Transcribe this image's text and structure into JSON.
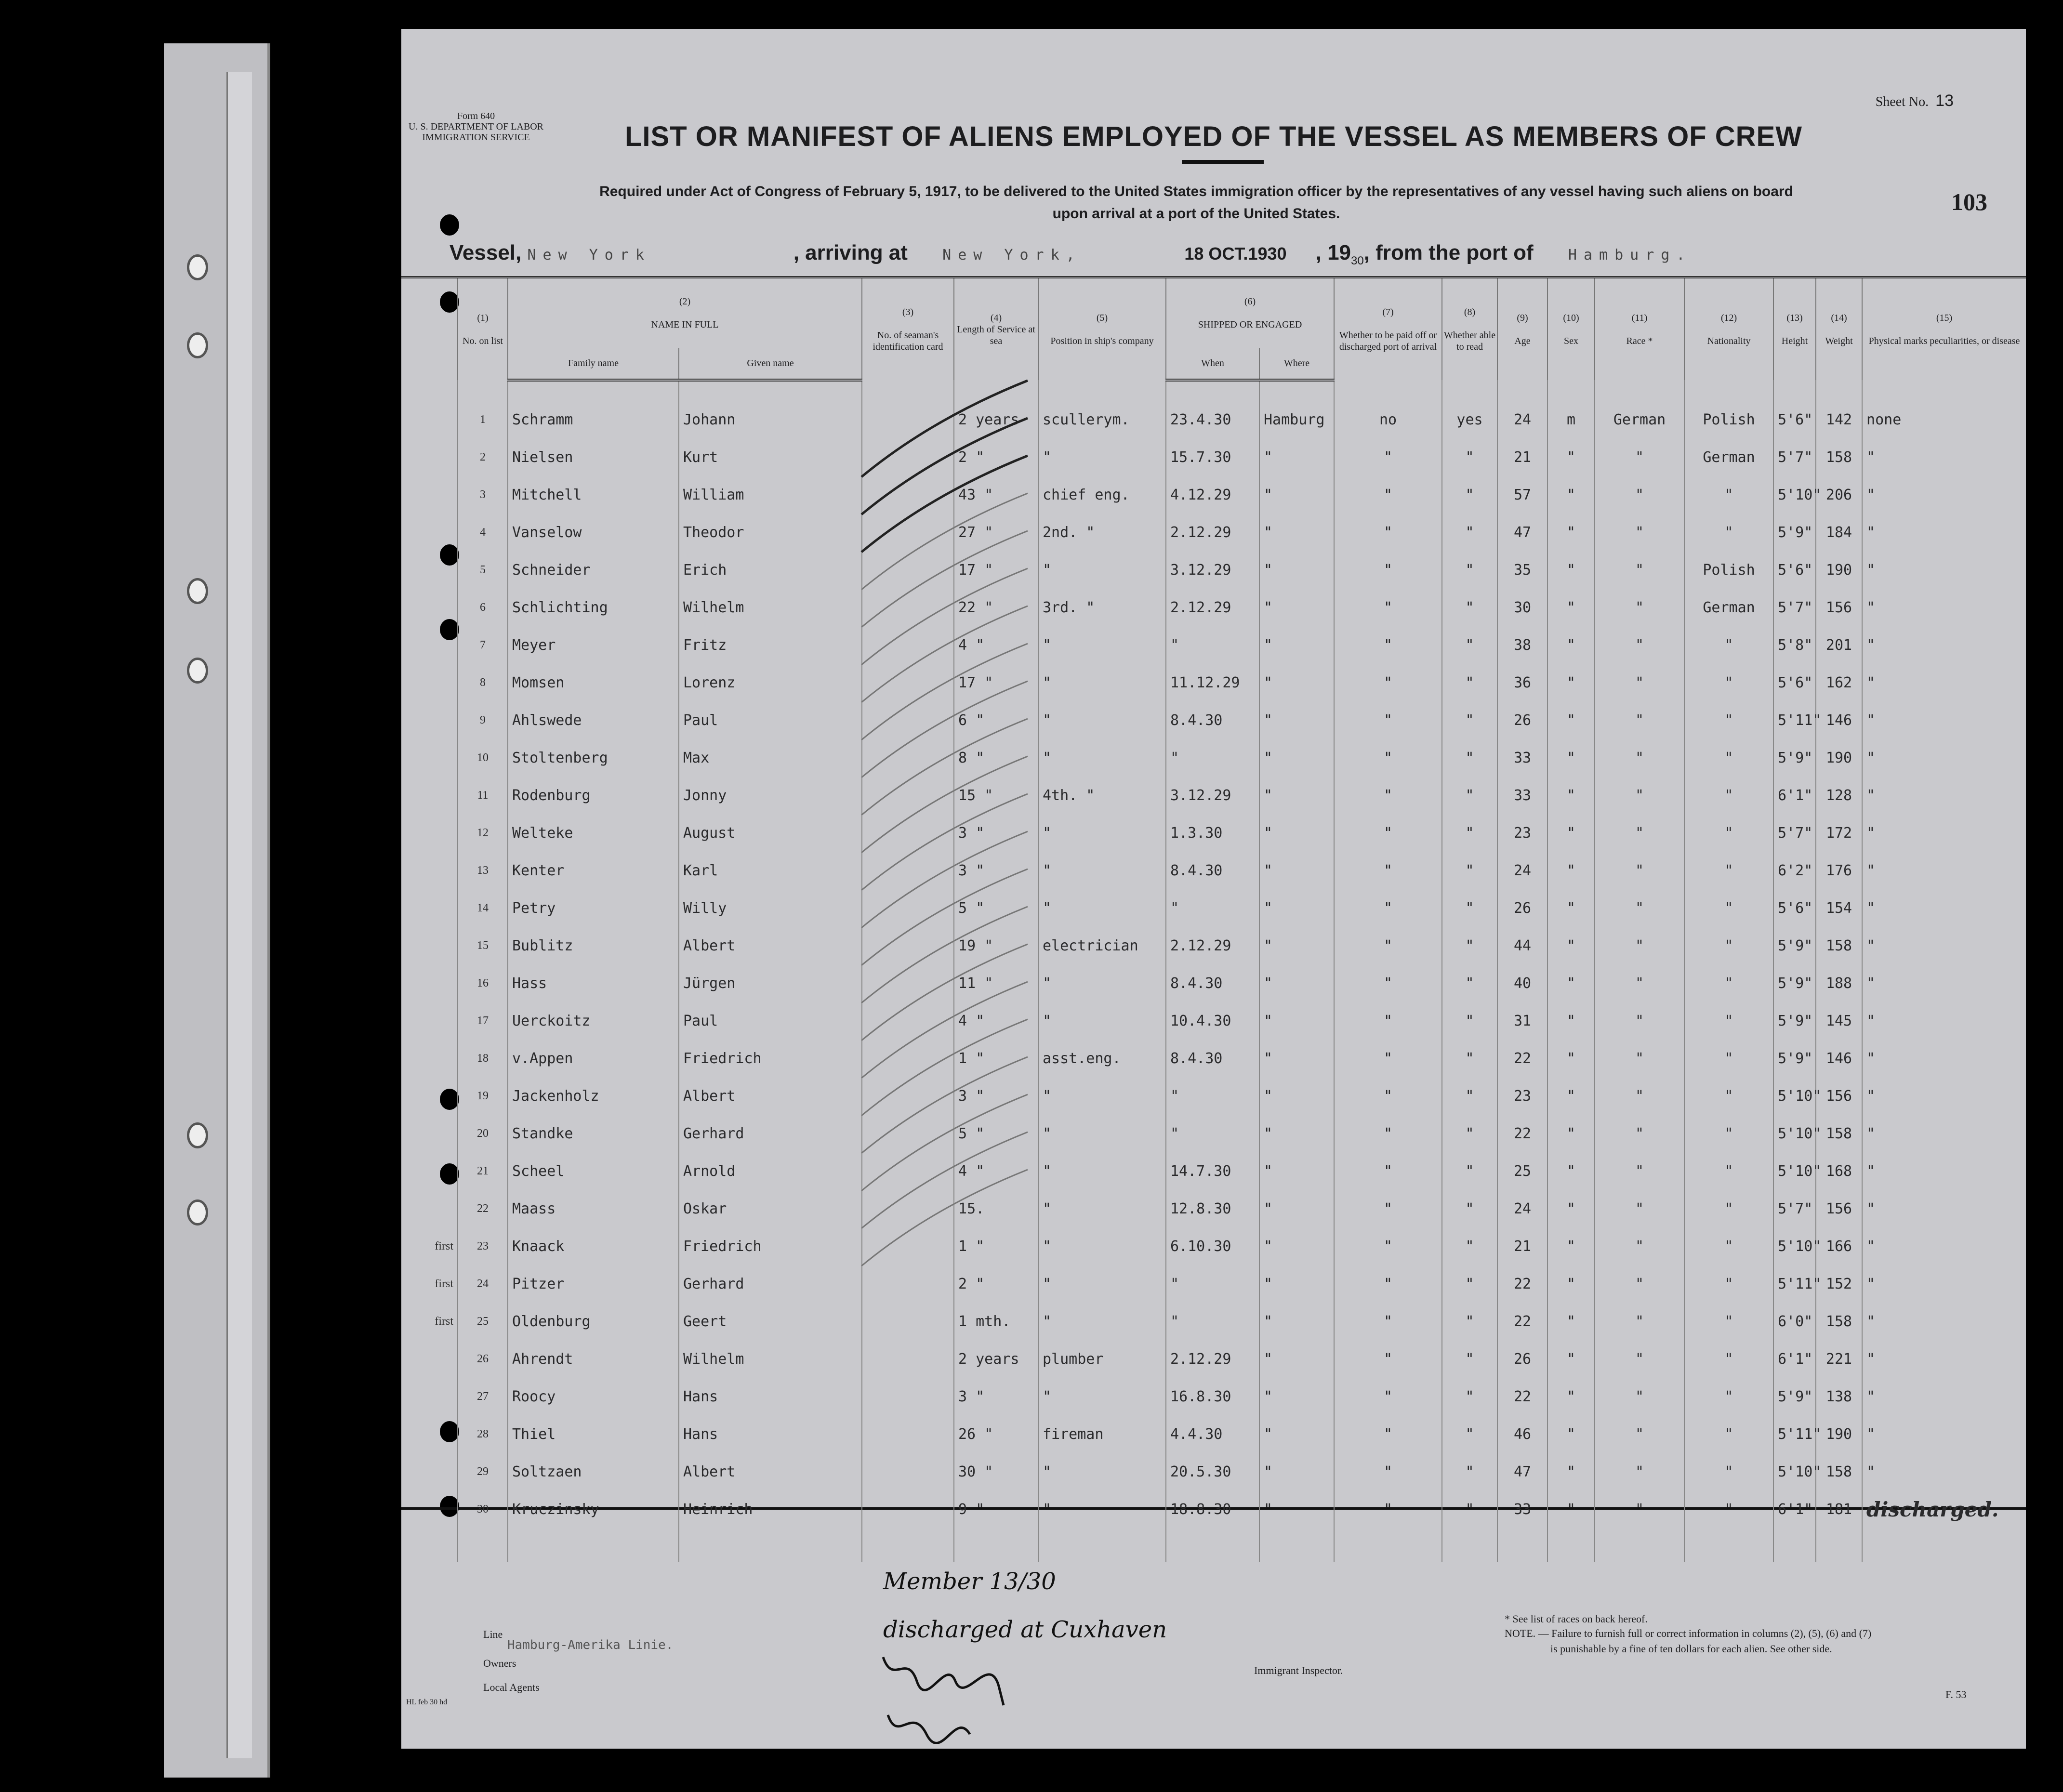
{
  "header": {
    "form_label": "Form 640",
    "department": "U. S. DEPARTMENT OF LABOR",
    "service": "IMMIGRATION SERVICE",
    "sheet_label": "Sheet No.",
    "sheet_no": "13",
    "title": "LIST OR MANIFEST OF ALIENS EMPLOYED OF THE VESSEL AS MEMBERS OF CREW",
    "requirement_line1": "Required under Act of Congress of February 5, 1917, to be delivered to the United States immigration officer by the representatives of any vessel having such aliens on board",
    "requirement_line2": "upon arrival at a port of the United States.",
    "page_number": "103",
    "vessel_label": "Vessel,",
    "vessel_name": "New York",
    "arriving_label": ", arriving at",
    "arrival_port": "New York,",
    "date_stamp": "18 OCT.1930",
    "year_label": ", 19",
    "year": "30",
    "from_label": ", from the port of",
    "departure_port": "Hamburg."
  },
  "columns": {
    "nums": [
      "(1)",
      "(2)",
      "(3)",
      "(4)",
      "(5)",
      "(6)",
      "(7)",
      "(8)",
      "(9)",
      "(10)",
      "(11)",
      "(12)",
      "(13)",
      "(14)",
      "(15)"
    ],
    "no_on_list": "No. on list",
    "name_in_full": "NAME IN FULL",
    "family_name": "Family name",
    "given_name": "Given name",
    "id_card": "No. of seaman's identification card",
    "length_service": "Length of Service at sea",
    "position": "Position in ship's company",
    "shipped": "SHIPPED OR ENGAGED",
    "when": "When",
    "where": "Where",
    "paid_off": "Whether to be paid off or discharged port of arrival",
    "able_read": "Whether able to read",
    "age": "Age",
    "sex": "Sex",
    "race": "Race *",
    "nationality": "Nationality",
    "height": "Height",
    "weight": "Weight",
    "marks": "Physical marks peculiarities, or disease"
  },
  "rows": [
    {
      "margin": "",
      "no": "1",
      "family": "Schramm",
      "given": "Johann",
      "service": "2 years",
      "position": "scullerym.",
      "when": "23.4.30",
      "where": "Hamburg",
      "paid": "no",
      "read": "yes",
      "age": "24",
      "sex": "m",
      "race": "German",
      "nat": "Polish",
      "height": "5'6\"",
      "weight": "142",
      "marks": "none"
    },
    {
      "margin": "",
      "no": "2",
      "family": "Nielsen",
      "given": "Kurt",
      "service": "2  \"",
      "position": "\"",
      "when": "15.7.30",
      "where": "\"",
      "paid": "\"",
      "read": "\"",
      "age": "21",
      "sex": "\"",
      "race": "\"",
      "nat": "German",
      "height": "5'7\"",
      "weight": "158",
      "marks": "\""
    },
    {
      "margin": "",
      "no": "3",
      "family": "Mitchell",
      "given": "William",
      "service": "43 \"",
      "position": "chief eng.",
      "when": "4.12.29",
      "where": "\"",
      "paid": "\"",
      "read": "\"",
      "age": "57",
      "sex": "\"",
      "race": "\"",
      "nat": "\"",
      "height": "5'10\"",
      "weight": "206",
      "marks": "\""
    },
    {
      "margin": "",
      "no": "4",
      "family": "Vanselow",
      "given": "Theodor",
      "service": "27 \"",
      "position": "2nd.  \"",
      "when": "2.12.29",
      "where": "\"",
      "paid": "\"",
      "read": "\"",
      "age": "47",
      "sex": "\"",
      "race": "\"",
      "nat": "\"",
      "height": "5'9\"",
      "weight": "184",
      "marks": "\""
    },
    {
      "margin": "",
      "no": "5",
      "family": "Schneider",
      "given": "Erich",
      "service": "17 \"",
      "position": "\"",
      "when": "3.12.29",
      "where": "\"",
      "paid": "\"",
      "read": "\"",
      "age": "35",
      "sex": "\"",
      "race": "\"",
      "nat": "Polish",
      "height": "5'6\"",
      "weight": "190",
      "marks": "\""
    },
    {
      "margin": "",
      "no": "6",
      "family": "Schlichting",
      "given": "Wilhelm",
      "service": "22 \"",
      "position": "3rd.  \"",
      "when": "2.12.29",
      "where": "\"",
      "paid": "\"",
      "read": "\"",
      "age": "30",
      "sex": "\"",
      "race": "\"",
      "nat": "German",
      "height": "5'7\"",
      "weight": "156",
      "marks": "\""
    },
    {
      "margin": "",
      "no": "7",
      "family": "Meyer",
      "given": "Fritz",
      "service": "4  \"",
      "position": "\"",
      "when": "\"",
      "where": "\"",
      "paid": "\"",
      "read": "\"",
      "age": "38",
      "sex": "\"",
      "race": "\"",
      "nat": "\"",
      "height": "5'8\"",
      "weight": "201",
      "marks": "\""
    },
    {
      "margin": "",
      "no": "8",
      "family": "Momsen",
      "given": "Lorenz",
      "service": "17 \"",
      "position": "\"",
      "when": "11.12.29",
      "where": "\"",
      "paid": "\"",
      "read": "\"",
      "age": "36",
      "sex": "\"",
      "race": "\"",
      "nat": "\"",
      "height": "5'6\"",
      "weight": "162",
      "marks": "\""
    },
    {
      "margin": "",
      "no": "9",
      "family": "Ahlswede",
      "given": "Paul",
      "service": "6  \"",
      "position": "\"",
      "when": "8.4.30",
      "where": "\"",
      "paid": "\"",
      "read": "\"",
      "age": "26",
      "sex": "\"",
      "race": "\"",
      "nat": "\"",
      "height": "5'11\"",
      "weight": "146",
      "marks": "\""
    },
    {
      "margin": "",
      "no": "10",
      "family": "Stoltenberg",
      "given": "Max",
      "service": "8  \"",
      "position": "\"",
      "when": "\"",
      "where": "\"",
      "paid": "\"",
      "read": "\"",
      "age": "33",
      "sex": "\"",
      "race": "\"",
      "nat": "\"",
      "height": "5'9\"",
      "weight": "190",
      "marks": "\""
    },
    {
      "margin": "",
      "no": "11",
      "family": "Rodenburg",
      "given": "Jonny",
      "service": "15 \"",
      "position": "4th.  \"",
      "when": "3.12.29",
      "where": "\"",
      "paid": "\"",
      "read": "\"",
      "age": "33",
      "sex": "\"",
      "race": "\"",
      "nat": "\"",
      "height": "6'1\"",
      "weight": "128",
      "marks": "\""
    },
    {
      "margin": "",
      "no": "12",
      "family": "Welteke",
      "given": "August",
      "service": "3  \"",
      "position": "\"",
      "when": "1.3.30",
      "where": "\"",
      "paid": "\"",
      "read": "\"",
      "age": "23",
      "sex": "\"",
      "race": "\"",
      "nat": "\"",
      "height": "5'7\"",
      "weight": "172",
      "marks": "\""
    },
    {
      "margin": "",
      "no": "13",
      "family": "Kenter",
      "given": "Karl",
      "service": "3  \"",
      "position": "\"",
      "when": "8.4.30",
      "where": "\"",
      "paid": "\"",
      "read": "\"",
      "age": "24",
      "sex": "\"",
      "race": "\"",
      "nat": "\"",
      "height": "6'2\"",
      "weight": "176",
      "marks": "\""
    },
    {
      "margin": "",
      "no": "14",
      "family": "Petry",
      "given": "Willy",
      "service": "5  \"",
      "position": "\"",
      "when": "\"",
      "where": "\"",
      "paid": "\"",
      "read": "\"",
      "age": "26",
      "sex": "\"",
      "race": "\"",
      "nat": "\"",
      "height": "5'6\"",
      "weight": "154",
      "marks": "\""
    },
    {
      "margin": "",
      "no": "15",
      "family": "Bublitz",
      "given": "Albert",
      "service": "19 \"",
      "position": "electrician",
      "when": "2.12.29",
      "where": "\"",
      "paid": "\"",
      "read": "\"",
      "age": "44",
      "sex": "\"",
      "race": "\"",
      "nat": "\"",
      "height": "5'9\"",
      "weight": "158",
      "marks": "\""
    },
    {
      "margin": "",
      "no": "16",
      "family": "Hass",
      "given": "Jürgen",
      "service": "11 \"",
      "position": "\"",
      "when": "8.4.30",
      "where": "\"",
      "paid": "\"",
      "read": "\"",
      "age": "40",
      "sex": "\"",
      "race": "\"",
      "nat": "\"",
      "height": "5'9\"",
      "weight": "188",
      "marks": "\""
    },
    {
      "margin": "",
      "no": "17",
      "family": "Uerckoitz",
      "given": "Paul",
      "service": "4  \"",
      "position": "\"",
      "when": "10.4.30",
      "where": "\"",
      "paid": "\"",
      "read": "\"",
      "age": "31",
      "sex": "\"",
      "race": "\"",
      "nat": "\"",
      "height": "5'9\"",
      "weight": "145",
      "marks": "\""
    },
    {
      "margin": "",
      "no": "18",
      "family": "v.Appen",
      "given": "Friedrich",
      "service": "1  \"",
      "position": "asst.eng.",
      "when": "8.4.30",
      "where": "\"",
      "paid": "\"",
      "read": "\"",
      "age": "22",
      "sex": "\"",
      "race": "\"",
      "nat": "\"",
      "height": "5'9\"",
      "weight": "146",
      "marks": "\""
    },
    {
      "margin": "",
      "no": "19",
      "family": "Jackenholz",
      "given": "Albert",
      "service": "3  \"",
      "position": "\"",
      "when": "\"",
      "where": "\"",
      "paid": "\"",
      "read": "\"",
      "age": "23",
      "sex": "\"",
      "race": "\"",
      "nat": "\"",
      "height": "5'10\"",
      "weight": "156",
      "marks": "\""
    },
    {
      "margin": "",
      "no": "20",
      "family": "Standke",
      "given": "Gerhard",
      "service": "5  \"",
      "position": "\"",
      "when": "\"",
      "where": "\"",
      "paid": "\"",
      "read": "\"",
      "age": "22",
      "sex": "\"",
      "race": "\"",
      "nat": "\"",
      "height": "5'10\"",
      "weight": "158",
      "marks": "\""
    },
    {
      "margin": "",
      "no": "21",
      "family": "Scheel",
      "given": "Arnold",
      "service": "4  \"",
      "position": "\"",
      "when": "14.7.30",
      "where": "\"",
      "paid": "\"",
      "read": "\"",
      "age": "25",
      "sex": "\"",
      "race": "\"",
      "nat": "\"",
      "height": "5'10\"",
      "weight": "168",
      "marks": "\""
    },
    {
      "margin": "",
      "no": "22",
      "family": "Maass",
      "given": "Oskar",
      "service": "15.",
      "position": "\"",
      "when": "12.8.30",
      "where": "\"",
      "paid": "\"",
      "read": "\"",
      "age": "24",
      "sex": "\"",
      "race": "\"",
      "nat": "\"",
      "height": "5'7\"",
      "weight": "156",
      "marks": "\""
    },
    {
      "margin": "first",
      "no": "23",
      "family": "Knaack",
      "given": "Friedrich",
      "service": "1  \"",
      "position": "\"",
      "when": "6.10.30",
      "where": "\"",
      "paid": "\"",
      "read": "\"",
      "age": "21",
      "sex": "\"",
      "race": "\"",
      "nat": "\"",
      "height": "5'10\"",
      "weight": "166",
      "marks": "\""
    },
    {
      "margin": "first",
      "no": "24",
      "family": "Pitzer",
      "given": "Gerhard",
      "service": "2  \"",
      "position": "\"",
      "when": "\"",
      "where": "\"",
      "paid": "\"",
      "read": "\"",
      "age": "22",
      "sex": "\"",
      "race": "\"",
      "nat": "\"",
      "height": "5'11\"",
      "weight": "152",
      "marks": "\""
    },
    {
      "margin": "first",
      "no": "25",
      "family": "Oldenburg",
      "given": "Geert",
      "service": "1 mth.",
      "position": "\"",
      "when": "\"",
      "where": "\"",
      "paid": "\"",
      "read": "\"",
      "age": "22",
      "sex": "\"",
      "race": "\"",
      "nat": "\"",
      "height": "6'0\"",
      "weight": "158",
      "marks": "\""
    },
    {
      "margin": "",
      "no": "26",
      "family": "Ahrendt",
      "given": "Wilhelm",
      "service": "2 years",
      "position": "plumber",
      "when": "2.12.29",
      "where": "\"",
      "paid": "\"",
      "read": "\"",
      "age": "26",
      "sex": "\"",
      "race": "\"",
      "nat": "\"",
      "height": "6'1\"",
      "weight": "221",
      "marks": "\""
    },
    {
      "margin": "",
      "no": "27",
      "family": "Roocy",
      "given": "Hans",
      "service": "3  \"",
      "position": "\"",
      "when": "16.8.30",
      "where": "\"",
      "paid": "\"",
      "read": "\"",
      "age": "22",
      "sex": "\"",
      "race": "\"",
      "nat": "\"",
      "height": "5'9\"",
      "weight": "138",
      "marks": "\""
    },
    {
      "margin": "",
      "no": "28",
      "family": "Thiel",
      "given": "Hans",
      "service": "26 \"",
      "position": "fireman",
      "when": "4.4.30",
      "where": "\"",
      "paid": "\"",
      "read": "\"",
      "age": "46",
      "sex": "\"",
      "race": "\"",
      "nat": "\"",
      "height": "5'11\"",
      "weight": "190",
      "marks": "\""
    },
    {
      "margin": "",
      "no": "29",
      "family": "Soltzaen",
      "given": "Albert",
      "service": "30 \"",
      "position": "\"",
      "when": "20.5.30",
      "where": "\"",
      "paid": "\"",
      "read": "\"",
      "age": "47",
      "sex": "\"",
      "race": "\"",
      "nat": "\"",
      "height": "5'10\"",
      "weight": "158",
      "marks": "\""
    },
    {
      "margin": "",
      "no": "30",
      "family": "Kruczinsky",
      "given": "Heinrich",
      "service": "9  \"",
      "position": "\"",
      "when": "18.8.30",
      "where": "\"",
      "paid": "\"",
      "read": "\"",
      "age": "33",
      "sex": "\"",
      "race": "\"",
      "nat": "\"",
      "height": "6'1\"",
      "weight": "181",
      "marks": "discharged.",
      "struck": true
    }
  ],
  "footer": {
    "line_label": "Line",
    "owners_label": "Owners",
    "owners_value": "Hamburg-Amerika Linie.",
    "agents_label": "Local Agents",
    "inspector_label": "Immigrant Inspector.",
    "races_note": "* See list of races on back hereof.",
    "note_line1": "NOTE. — Failure to furnish full or correct information in columns (2), (5), (6) and (7)",
    "note_line2": "is punishable by a fine of ten dollars for each alien.  See other side.",
    "form_code": "F. 53",
    "print_code": "HL feb 30 hd",
    "hand_member": "Member 13/30",
    "hand_discharged": "discharged at Cuxhaven"
  }
}
